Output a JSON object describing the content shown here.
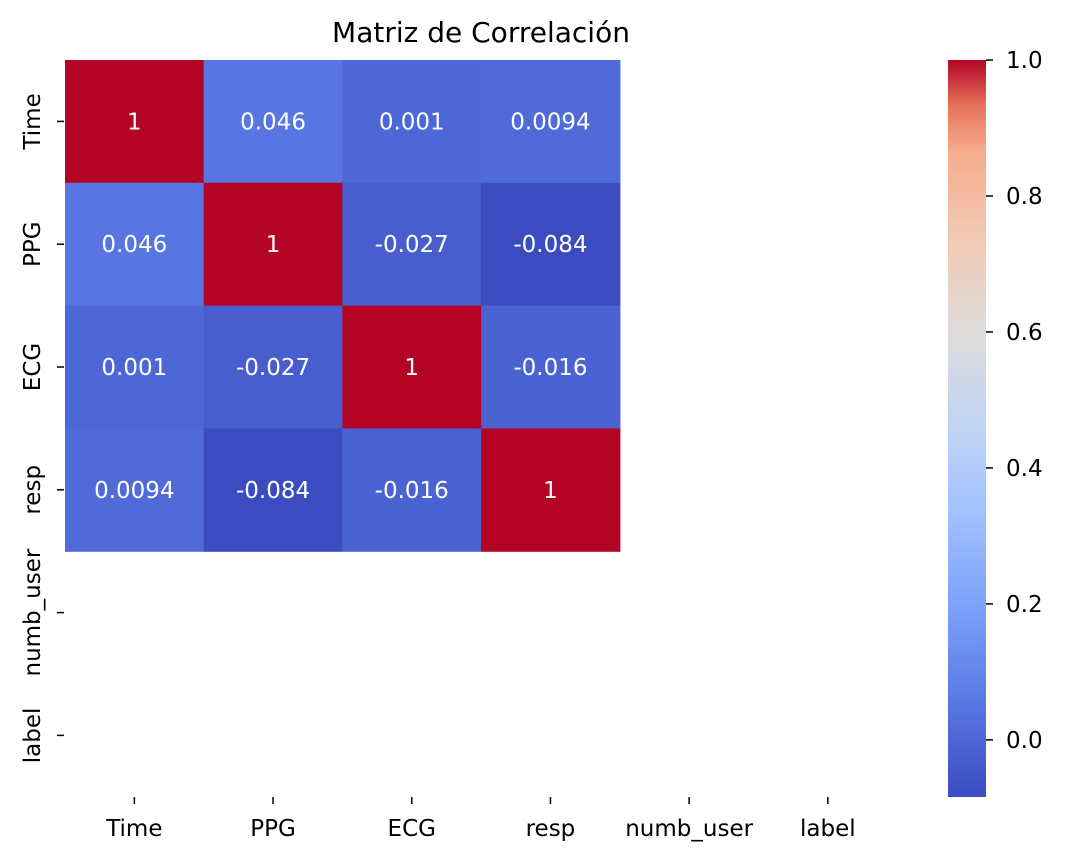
{
  "chart_data": {
    "type": "heatmap",
    "title": "Matriz de Correlación",
    "xlabel": "",
    "ylabel": "",
    "x_categories": [
      "Time",
      "PPG",
      "ECG",
      "resp",
      "numb_user",
      "label"
    ],
    "y_categories": [
      "Time",
      "PPG",
      "ECG",
      "resp",
      "numb_user",
      "label"
    ],
    "values": [
      [
        1,
        0.046,
        0.001,
        0.0094,
        null,
        null
      ],
      [
        0.046,
        1,
        -0.027,
        -0.084,
        null,
        null
      ],
      [
        0.001,
        -0.027,
        1,
        -0.016,
        null,
        null
      ],
      [
        0.0094,
        -0.084,
        -0.016,
        1,
        null,
        null
      ],
      [
        null,
        null,
        null,
        null,
        null,
        null
      ],
      [
        null,
        null,
        null,
        null,
        null,
        null
      ]
    ],
    "cell_labels": [
      [
        "1",
        "0.046",
        "0.001",
        "0.0094",
        "",
        ""
      ],
      [
        "0.046",
        "1",
        "-0.027",
        "-0.084",
        "",
        ""
      ],
      [
        "0.001",
        "-0.027",
        "1",
        "-0.016",
        "",
        ""
      ],
      [
        "0.0094",
        "-0.084",
        "-0.016",
        "1",
        "",
        ""
      ],
      [
        "",
        "",
        "",
        "",
        "",
        ""
      ],
      [
        "",
        "",
        "",
        "",
        "",
        ""
      ]
    ],
    "colorbar": {
      "colormap": "coolwarm",
      "range": [
        -0.084,
        1.0
      ],
      "ticks": [
        0.0,
        0.2,
        0.4,
        0.6,
        0.8,
        1.0
      ],
      "tick_labels": [
        "0.0",
        "0.2",
        "0.4",
        "0.6",
        "0.8",
        "1.0"
      ]
    },
    "annotation_color": "#ffffff"
  }
}
